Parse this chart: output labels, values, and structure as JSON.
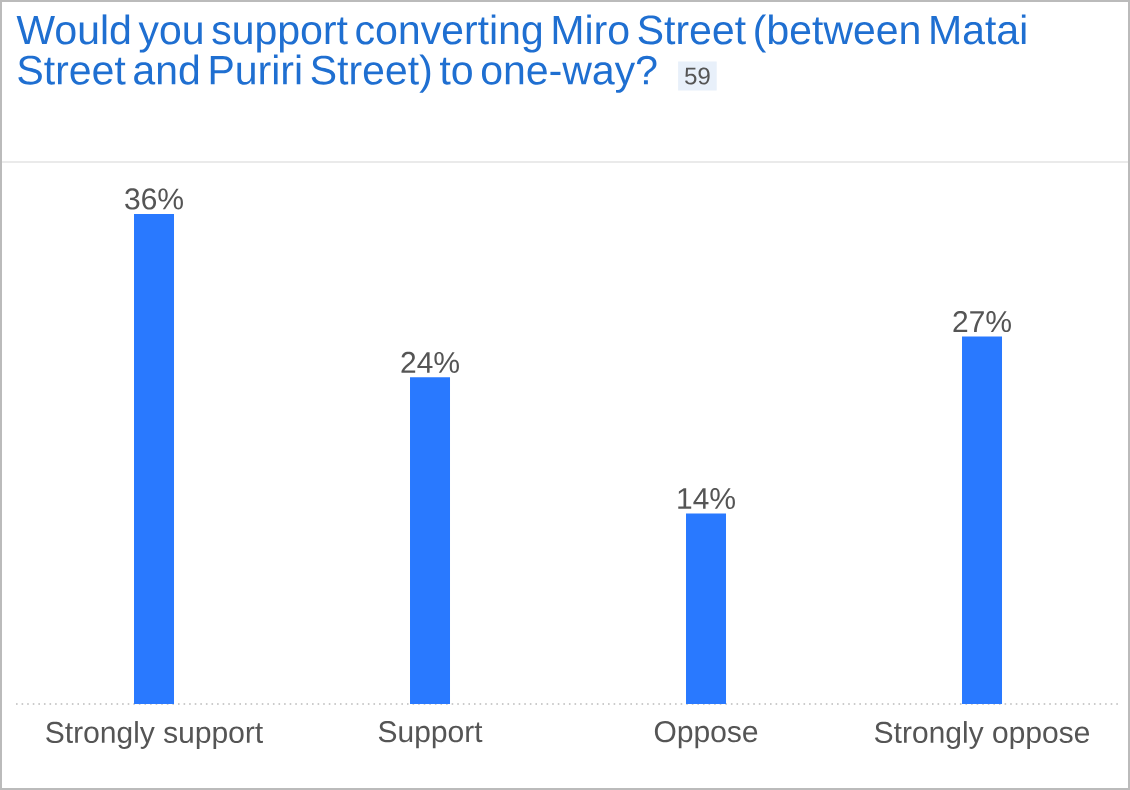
{
  "chart_data": {
    "type": "bar",
    "title": "Would you support converting Miro Street (between Matai Street and Puriri Street) to one-way?",
    "annotations": [
      "59"
    ],
    "categories": [
      "Strongly support",
      "Support",
      "Oppose",
      "Strongly oppose"
    ],
    "values": [
      36,
      24,
      14,
      27
    ],
    "value_labels": [
      "36%",
      "24%",
      "14%",
      "27%"
    ],
    "color": "#2979ff"
  }
}
